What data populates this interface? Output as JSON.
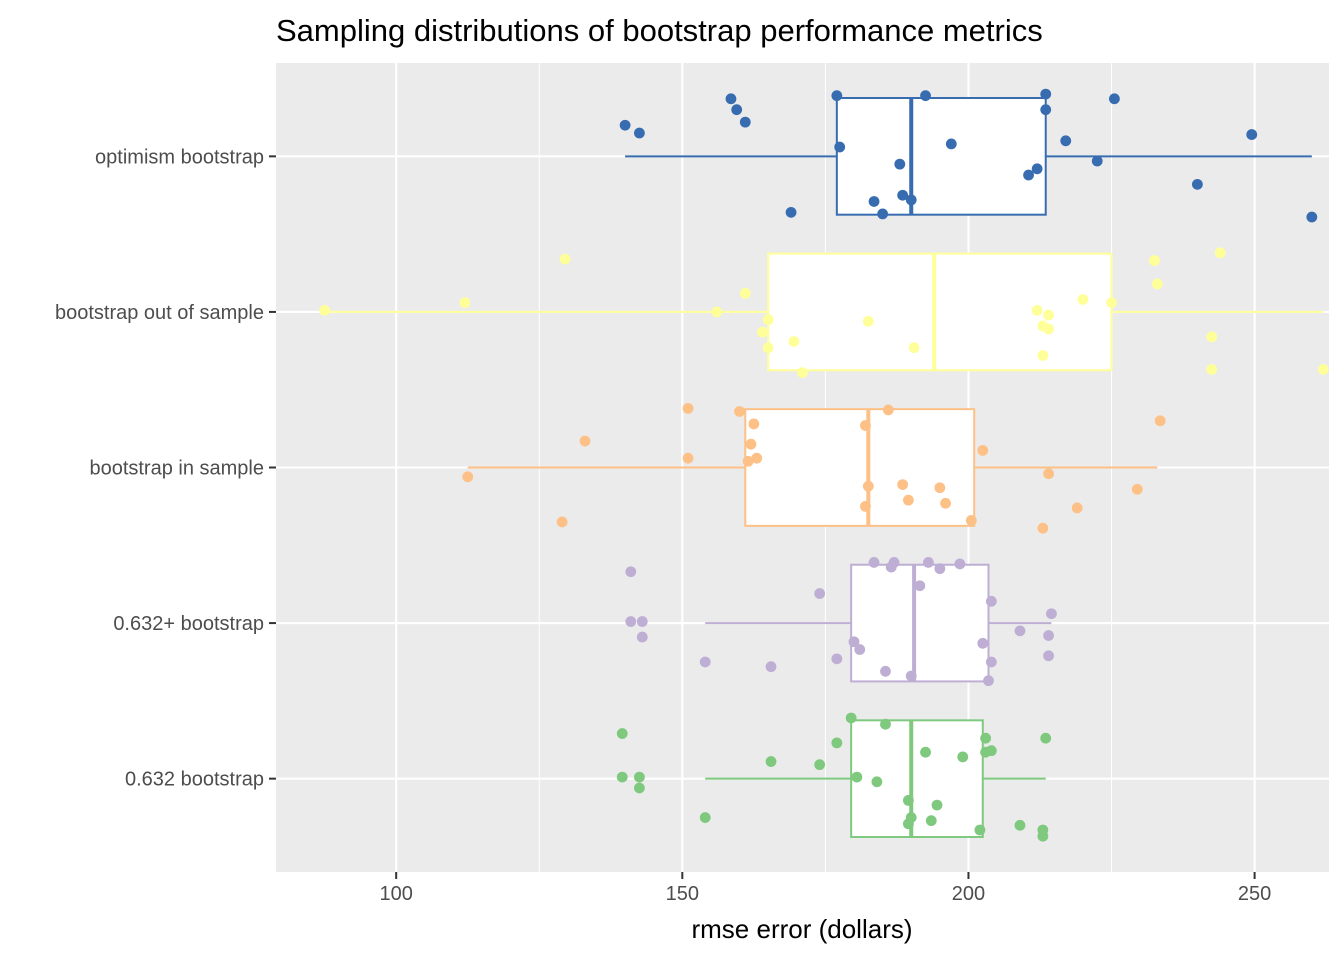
{
  "chart_data": {
    "type": "boxplot",
    "orientation": "horizontal",
    "title": "Sampling distributions of bootstrap performance metrics",
    "xlabel": "rmse error (dollars)",
    "ylabel": "",
    "xlim": [
      79,
      263
    ],
    "xticks": [
      "100",
      "150",
      "200",
      "250"
    ],
    "categories": [
      "0.632 bootstrap",
      "0.632+ bootstrap",
      "bootstrap in sample",
      "bootstrap out of sample",
      "optimism bootstrap"
    ],
    "grid": true,
    "legend": "none",
    "series": [
      {
        "category": "0.632 bootstrap",
        "color": "#7fc97f",
        "stats": {
          "whisker_low": 154,
          "q1": 179.5,
          "median": 190,
          "q3": 202.5,
          "whisker_high": 213.5
        },
        "points": [
          {
            "x": 179.5,
            "y": 0.39
          },
          {
            "x": 185.5,
            "y": 0.35
          },
          {
            "x": 139.5,
            "y": 0.29
          },
          {
            "x": 203,
            "y": 0.26
          },
          {
            "x": 213.5,
            "y": 0.26
          },
          {
            "x": 177,
            "y": 0.23
          },
          {
            "x": 204,
            "y": 0.18
          },
          {
            "x": 203,
            "y": 0.17
          },
          {
            "x": 192.5,
            "y": 0.17
          },
          {
            "x": 199,
            "y": 0.14
          },
          {
            "x": 165.5,
            "y": 0.11
          },
          {
            "x": 174,
            "y": 0.09
          },
          {
            "x": 139.5,
            "y": 0.01
          },
          {
            "x": 142.5,
            "y": 0.01
          },
          {
            "x": 180.5,
            "y": 0.01
          },
          {
            "x": 184,
            "y": -0.02
          },
          {
            "x": 142.5,
            "y": -0.06
          },
          {
            "x": 189.5,
            "y": -0.14
          },
          {
            "x": 194.5,
            "y": -0.17
          },
          {
            "x": 154,
            "y": -0.25
          },
          {
            "x": 190,
            "y": -0.25
          },
          {
            "x": 193.5,
            "y": -0.27
          },
          {
            "x": 189.5,
            "y": -0.29
          },
          {
            "x": 209,
            "y": -0.3
          },
          {
            "x": 202,
            "y": -0.33
          },
          {
            "x": 213,
            "y": -0.33
          },
          {
            "x": 213,
            "y": -0.37
          }
        ]
      },
      {
        "category": "0.632+ bootstrap",
        "color": "#beaed4",
        "stats": {
          "whisker_low": 154,
          "q1": 179.5,
          "median": 190.5,
          "q3": 203.5,
          "whisker_high": 214.5
        },
        "points": [
          {
            "x": 183.5,
            "y": 0.39
          },
          {
            "x": 187,
            "y": 0.39
          },
          {
            "x": 193,
            "y": 0.39
          },
          {
            "x": 198.5,
            "y": 0.38
          },
          {
            "x": 186.5,
            "y": 0.36
          },
          {
            "x": 195,
            "y": 0.35
          },
          {
            "x": 141,
            "y": 0.33
          },
          {
            "x": 191.5,
            "y": 0.24
          },
          {
            "x": 174,
            "y": 0.19
          },
          {
            "x": 204,
            "y": 0.14
          },
          {
            "x": 214.5,
            "y": 0.06
          },
          {
            "x": 141,
            "y": 0.01
          },
          {
            "x": 143,
            "y": 0.01
          },
          {
            "x": 209,
            "y": -0.05
          },
          {
            "x": 214,
            "y": -0.08
          },
          {
            "x": 143,
            "y": -0.09
          },
          {
            "x": 180,
            "y": -0.12
          },
          {
            "x": 202.5,
            "y": -0.13
          },
          {
            "x": 181,
            "y": -0.17
          },
          {
            "x": 177,
            "y": -0.23
          },
          {
            "x": 204,
            "y": -0.25
          },
          {
            "x": 214,
            "y": -0.21
          },
          {
            "x": 154,
            "y": -0.25
          },
          {
            "x": 165.5,
            "y": -0.28
          },
          {
            "x": 185.5,
            "y": -0.31
          },
          {
            "x": 190,
            "y": -0.34
          },
          {
            "x": 203.5,
            "y": -0.37
          }
        ]
      },
      {
        "category": "bootstrap in sample",
        "color": "#fdc086",
        "stats": {
          "whisker_low": 112.5,
          "q1": 161,
          "median": 182.5,
          "q3": 201,
          "whisker_high": 233
        },
        "points": [
          {
            "x": 151,
            "y": 0.38
          },
          {
            "x": 160,
            "y": 0.36
          },
          {
            "x": 186,
            "y": 0.37
          },
          {
            "x": 162.5,
            "y": 0.28
          },
          {
            "x": 182,
            "y": 0.27
          },
          {
            "x": 233.5,
            "y": 0.3
          },
          {
            "x": 133,
            "y": 0.17
          },
          {
            "x": 162,
            "y": 0.15
          },
          {
            "x": 202.5,
            "y": 0.11
          },
          {
            "x": 151,
            "y": 0.06
          },
          {
            "x": 161.5,
            "y": 0.04
          },
          {
            "x": 163,
            "y": 0.06
          },
          {
            "x": 112.5,
            "y": -0.06
          },
          {
            "x": 214,
            "y": -0.04
          },
          {
            "x": 188.5,
            "y": -0.11
          },
          {
            "x": 182.5,
            "y": -0.12
          },
          {
            "x": 195,
            "y": -0.13
          },
          {
            "x": 229.5,
            "y": -0.14
          },
          {
            "x": 189.5,
            "y": -0.21
          },
          {
            "x": 196,
            "y": -0.23
          },
          {
            "x": 182,
            "y": -0.25
          },
          {
            "x": 219,
            "y": -0.26
          },
          {
            "x": 129,
            "y": -0.35
          },
          {
            "x": 200.5,
            "y": -0.34
          },
          {
            "x": 213,
            "y": -0.39
          }
        ]
      },
      {
        "category": "bootstrap out of sample",
        "color": "#ffff99",
        "stats": {
          "whisker_low": 87.5,
          "q1": 165,
          "median": 194,
          "q3": 225,
          "whisker_high": 262
        },
        "points": [
          {
            "x": 129.5,
            "y": 0.34
          },
          {
            "x": 244,
            "y": 0.38
          },
          {
            "x": 232.5,
            "y": 0.33
          },
          {
            "x": 233,
            "y": 0.18
          },
          {
            "x": 161,
            "y": 0.12
          },
          {
            "x": 220,
            "y": 0.08
          },
          {
            "x": 225,
            "y": 0.06
          },
          {
            "x": 112,
            "y": 0.06
          },
          {
            "x": 87.5,
            "y": 0.01
          },
          {
            "x": 156,
            "y": 0.0
          },
          {
            "x": 212,
            "y": 0.01
          },
          {
            "x": 214,
            "y": -0.02
          },
          {
            "x": 165,
            "y": -0.05
          },
          {
            "x": 182.5,
            "y": -0.06
          },
          {
            "x": 213,
            "y": -0.09
          },
          {
            "x": 214,
            "y": -0.11
          },
          {
            "x": 164,
            "y": -0.13
          },
          {
            "x": 242.5,
            "y": -0.16
          },
          {
            "x": 169.5,
            "y": -0.19
          },
          {
            "x": 165,
            "y": -0.23
          },
          {
            "x": 190.5,
            "y": -0.23
          },
          {
            "x": 213,
            "y": -0.28
          },
          {
            "x": 171,
            "y": -0.39
          },
          {
            "x": 242.5,
            "y": -0.37
          },
          {
            "x": 262,
            "y": -0.37
          }
        ]
      },
      {
        "category": "optimism bootstrap",
        "color": "#386cb0",
        "stats": {
          "whisker_low": 140,
          "q1": 177,
          "median": 190,
          "q3": 213.5,
          "whisker_high": 260
        },
        "points": [
          {
            "x": 177,
            "y": 0.39
          },
          {
            "x": 192.5,
            "y": 0.39
          },
          {
            "x": 213.5,
            "y": 0.4
          },
          {
            "x": 225.5,
            "y": 0.37
          },
          {
            "x": 158.5,
            "y": 0.37
          },
          {
            "x": 159.5,
            "y": 0.3
          },
          {
            "x": 213.5,
            "y": 0.3
          },
          {
            "x": 161,
            "y": 0.22
          },
          {
            "x": 140,
            "y": 0.2
          },
          {
            "x": 142.5,
            "y": 0.15
          },
          {
            "x": 249.5,
            "y": 0.14
          },
          {
            "x": 217,
            "y": 0.1
          },
          {
            "x": 197,
            "y": 0.08
          },
          {
            "x": 177.5,
            "y": 0.06
          },
          {
            "x": 222.5,
            "y": -0.03
          },
          {
            "x": 188,
            "y": -0.05
          },
          {
            "x": 212,
            "y": -0.08
          },
          {
            "x": 210.5,
            "y": -0.12
          },
          {
            "x": 240,
            "y": -0.18
          },
          {
            "x": 188.5,
            "y": -0.25
          },
          {
            "x": 190,
            "y": -0.28
          },
          {
            "x": 183.5,
            "y": -0.29
          },
          {
            "x": 169,
            "y": -0.36
          },
          {
            "x": 185,
            "y": -0.37
          },
          {
            "x": 260,
            "y": -0.39
          }
        ]
      }
    ]
  }
}
